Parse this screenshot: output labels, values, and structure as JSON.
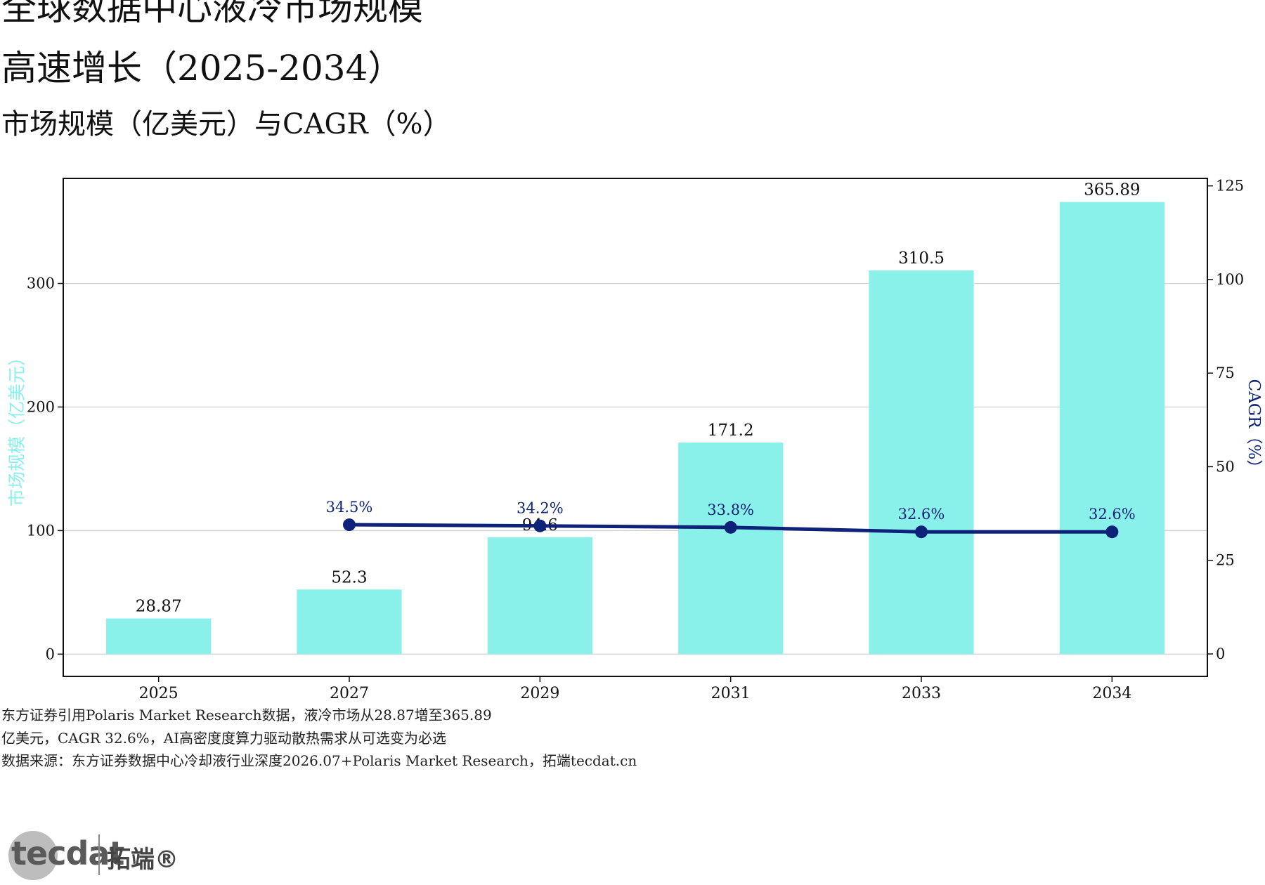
{
  "title_line1": "全球数据中心液冷市场规模",
  "title_line2": "高速增长（2025-2034）",
  "subtitle": "市场规模（亿美元）与CAGR（%）",
  "chart_data": {
    "type": "bar",
    "categories": [
      "2025",
      "2027",
      "2029",
      "2031",
      "2033",
      "2034"
    ],
    "series": [
      {
        "name": "",
        "type": "bar",
        "axis": "left",
        "values": [
          28.87,
          52.3,
          94.6,
          171.2,
          310.5,
          365.89
        ],
        "labels": [
          "28.87",
          "52.3",
          "94.6",
          "171.2",
          "310.5",
          "365.89"
        ]
      },
      {
        "name": "",
        "type": "line",
        "axis": "right",
        "values": [
          null,
          34.5,
          34.2,
          33.8,
          32.6,
          32.6
        ],
        "labels": [
          "",
          "34.5%",
          "34.2%",
          "33.8%",
          "32.6%",
          "32.6%"
        ]
      }
    ],
    "ylabel": "市场规模（亿美元）",
    "y2label": "CAGR（%）",
    "ylim": [
      -18,
      385
    ],
    "y2lim": [
      -6,
      127
    ],
    "yticks": [
      0,
      100,
      200,
      300
    ],
    "y2ticks": [
      0,
      25,
      50,
      75,
      100,
      125
    ],
    "grid": true,
    "bar_color": "#8af0ea",
    "line_color": "#0d2278",
    "ylabel_color": "#8af0ea",
    "y2label_color": "#0d2278"
  },
  "notes": [
    "东方证券引用Polaris Market Research数据，液冷市场从28.87增至365.89",
    "亿美元，CAGR 32.6%，AI高密度度算力驱动散热需求从可选变为必选",
    "数据来源：东方证券数据中心冷却液行业深度2026.07+Polaris Market Research，拓端tecdat.cn"
  ],
  "logo": {
    "wordmark": "tecdat",
    "cn": "拓端®"
  }
}
